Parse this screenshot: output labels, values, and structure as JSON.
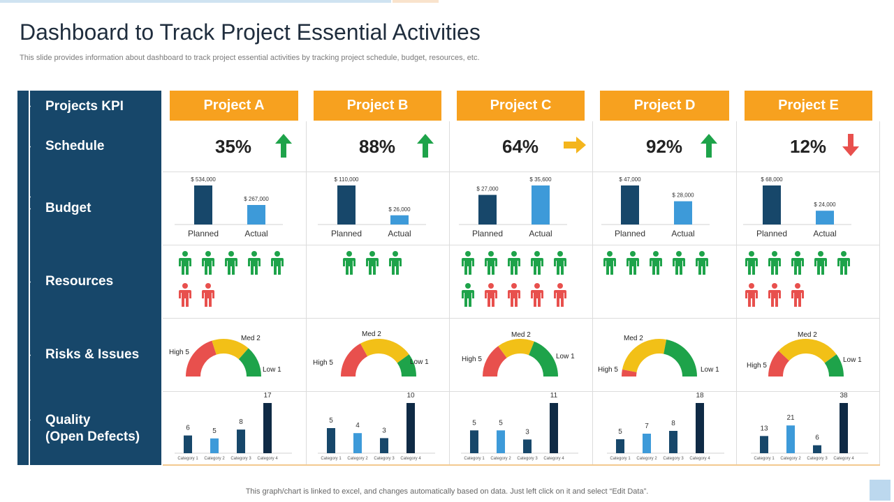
{
  "page": {
    "title": "Dashboard to Track Project Essential Activities",
    "subtitle": "This slide provides information about dashboard to track project essential activities by tracking project schedule, budget, resources, etc.",
    "footnote": "This graph/chart is linked to excel,  and changes automatically based on data. Just left click on it and select “Edit Data”."
  },
  "kpi": {
    "header": "Projects  KPI",
    "rows": [
      "Schedule",
      "Budget",
      "Resources",
      "Risks & Issues",
      "Quality",
      "(Open Defects)"
    ]
  },
  "colors": {
    "navy": "#17476a",
    "orange": "#f7a11f",
    "planned_bar": "#17476a",
    "actual_bar": "#3d9ad9",
    "green": "#1ea34a",
    "red": "#e8504d",
    "yellow": "#f2c017",
    "arrow_yellow": "#f4b51c",
    "quality_dark": "#0f2a45"
  },
  "projects": [
    {
      "name": "Project A",
      "schedule": "35%",
      "trend": "up",
      "budget": {
        "planned": 534000,
        "actual": 267000,
        "planned_label": "$ 534,000",
        "actual_label": "$ 267,000",
        "cat_planned": "Planned",
        "cat_actual": "Actual"
      },
      "resources": {
        "green": 5,
        "red": 2
      },
      "risks": {
        "high": 5,
        "med": 2,
        "low": 1,
        "high_label": "High 5",
        "med_label": "Med 2",
        "low_label": "Low 1"
      },
      "quality": [
        6,
        5,
        8,
        17
      ]
    },
    {
      "name": "Project B",
      "schedule": "88%",
      "trend": "up",
      "budget": {
        "planned": 110000,
        "actual": 26000,
        "planned_label": "$ 110,000",
        "actual_label": "$ 26,000",
        "cat_planned": "Planned",
        "cat_actual": "Actual"
      },
      "resources": {
        "green": 3,
        "red": 0
      },
      "risks": {
        "high": 5,
        "med": 2,
        "low": 1,
        "high_label": "High 5",
        "med_label": "Med 2",
        "low_label": "Low 1"
      },
      "quality": [
        5,
        4,
        3,
        10
      ]
    },
    {
      "name": "Project C",
      "schedule": "64%",
      "trend": "right",
      "budget": {
        "planned": 27000,
        "actual": 35600,
        "planned_label": "$ 27,000",
        "actual_label": "$ 35,600",
        "cat_planned": "Planned",
        "cat_actual": "Actual"
      },
      "resources": {
        "green": 6,
        "red": 4
      },
      "risks": {
        "high": 5,
        "med": 2,
        "low": 1,
        "high_label": "High 5",
        "med_label": "Med 2",
        "low_label": "Low 1"
      },
      "quality": [
        5,
        5,
        3,
        11
      ]
    },
    {
      "name": "Project D",
      "schedule": "92%",
      "trend": "up",
      "budget": {
        "planned": 47000,
        "actual": 28000,
        "planned_label": "$ 47,000",
        "actual_label": "$ 28,000",
        "cat_planned": "Planned",
        "cat_actual": "Actual"
      },
      "resources": {
        "green": 5,
        "red": 0
      },
      "risks": {
        "high": 5,
        "med": 2,
        "low": 1,
        "high_label": "High 5",
        "med_label": "Med 2",
        "low_label": "Low 1"
      },
      "quality": [
        5,
        7,
        8,
        18
      ]
    },
    {
      "name": "Project E",
      "schedule": "12%",
      "trend": "down",
      "budget": {
        "planned": 68000,
        "actual": 24000,
        "planned_label": "$ 68,000",
        "actual_label": "$ 24,000",
        "cat_planned": "Planned",
        "cat_actual": "Actual"
      },
      "resources": {
        "green": 5,
        "red": 3
      },
      "risks": {
        "high": 5,
        "med": 2,
        "low": 1,
        "high_label": "High 5",
        "med_label": "Med 2",
        "low_label": "Low 1"
      },
      "quality": [
        13,
        21,
        6,
        38
      ]
    }
  ],
  "quality_categories": [
    "Category 1",
    "Category 2",
    "Category 3",
    "Category 4"
  ]
}
